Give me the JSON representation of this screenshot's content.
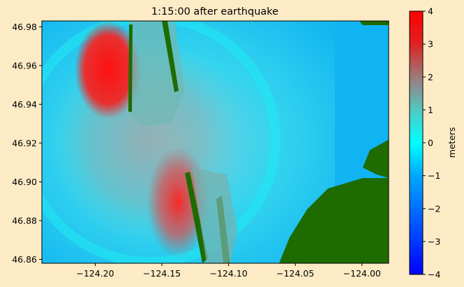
{
  "chart_data": {
    "type": "heatmap",
    "title": "1:15:00 after earthquake",
    "xlim": [
      -124.24,
      -123.98
    ],
    "ylim": [
      46.858,
      46.983
    ],
    "x_ticks": [
      -124.2,
      -124.15,
      -124.1,
      -124.05,
      -124.0
    ],
    "x_tick_labels": [
      "−124.20",
      "−124.15",
      "−124.10",
      "−124.05",
      "−124.00"
    ],
    "y_ticks": [
      46.86,
      46.88,
      46.9,
      46.92,
      46.94,
      46.96,
      46.98
    ],
    "y_tick_labels": [
      "46.86",
      "46.88",
      "46.90",
      "46.92",
      "46.94",
      "46.96",
      "46.98"
    ],
    "colorbar": {
      "label": "meters",
      "range": [
        -4,
        4
      ],
      "ticks": [
        4,
        3,
        2,
        1,
        0,
        -1,
        -2,
        -3,
        -4
      ],
      "tick_labels": [
        "4",
        "3",
        "2",
        "1",
        "0",
        "−1",
        "−2",
        "−3",
        "−4"
      ],
      "colors": [
        "#ff0000",
        "#b05a5a",
        "#7cb0aa",
        "#00ffff",
        "#0070ff",
        "#0000ff"
      ]
    },
    "land_color": "#1e6b00",
    "legend": "none",
    "grid": false
  }
}
